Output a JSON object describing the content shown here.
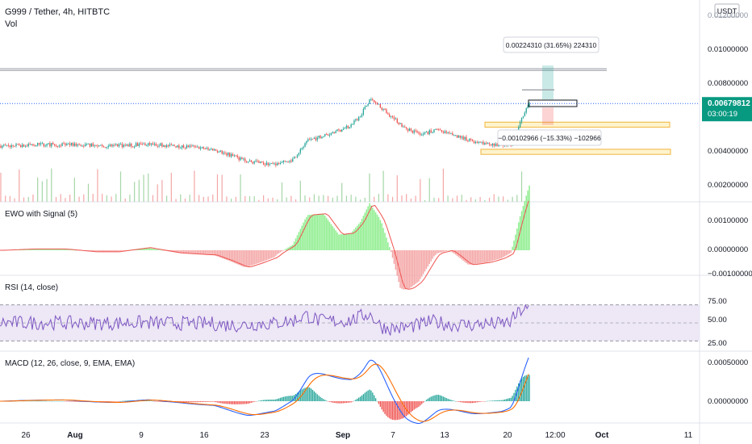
{
  "header": {
    "symbol": "G999 / Tether, 4h, HITBTC",
    "vol_label": "Vol",
    "currency_button": "USDT"
  },
  "colors": {
    "up": "#26a69a",
    "down": "#ef5350",
    "up_light": "#90ee90",
    "down_light": "#f4a6a6",
    "macd_line": "#2962ff",
    "signal_line": "#ff6d00",
    "rsi_line": "#7e57c2",
    "rsi_band": "#ede7f6",
    "price_line": "#2962ff",
    "zone": "#fff3cd",
    "zone_border": "#f0b43c",
    "price_badge": "#089981"
  },
  "price_axis": {
    "ticks": [
      "0.01200000",
      "0.01000000",
      "0.00800000",
      "0.00400000",
      "0.00200000"
    ],
    "current_price": "0.00679812",
    "countdown": "03:00:19"
  },
  "annotations": {
    "gain": "0.00224310 (31.65%) 224310",
    "loss": "−0.00102966 (−15.33%) −102966"
  },
  "panes": {
    "ewo": {
      "label": "EWO with Signal (5)",
      "ticks": [
        "0.00100000",
        "0.00000000",
        "−0.00100000"
      ]
    },
    "rsi": {
      "label": "RSI (14, close)",
      "ticks": [
        "75.00",
        "50.00",
        "25.00"
      ]
    },
    "macd": {
      "label": "MACD (12, 26, close, 9, EMA, EMA)",
      "ticks": [
        "0.00050000",
        "0.00000000"
      ]
    }
  },
  "time_axis": [
    "26",
    "Aug",
    "9",
    "16",
    "23",
    "Sep",
    "7",
    "13",
    "20",
    "12:00",
    "Oct",
    "11"
  ],
  "chart_data": {
    "type": "candlestick",
    "title": "G999 / Tether, 4h, HITBTC",
    "ylim": [
      0.0011,
      0.0124
    ],
    "price_keypoints": [
      [
        0,
        0.0043
      ],
      [
        40,
        0.0044
      ],
      [
        75,
        0.0043
      ],
      [
        95,
        0.0044
      ],
      [
        115,
        0.0043
      ],
      [
        138,
        0.0041
      ],
      [
        148,
        0.0038
      ],
      [
        160,
        0.0034
      ],
      [
        178,
        0.0032
      ],
      [
        190,
        0.0035
      ],
      [
        200,
        0.0046
      ],
      [
        210,
        0.0049
      ],
      [
        220,
        0.0052
      ],
      [
        228,
        0.0055
      ],
      [
        234,
        0.0061
      ],
      [
        240,
        0.007
      ],
      [
        246,
        0.0067
      ],
      [
        252,
        0.0062
      ],
      [
        262,
        0.0054
      ],
      [
        272,
        0.005
      ],
      [
        284,
        0.0052
      ],
      [
        296,
        0.0049
      ],
      [
        306,
        0.0046
      ],
      [
        318,
        0.0044
      ],
      [
        326,
        0.0043
      ],
      [
        332,
        0.0044
      ],
      [
        338,
        0.0057
      ],
      [
        344,
        0.0068
      ]
    ],
    "current_price": 0.00679812,
    "levels": {
      "horizontal_gray_1": 0.00885,
      "horizontal_gray_2": 0.00875,
      "blue_line": 0.00679812,
      "target": 0.00904,
      "stop": 0.00577
    },
    "zones": [
      {
        "from": 0.0054,
        "to": 0.0057
      },
      {
        "from": 0.0038,
        "to": 0.0041
      }
    ]
  }
}
